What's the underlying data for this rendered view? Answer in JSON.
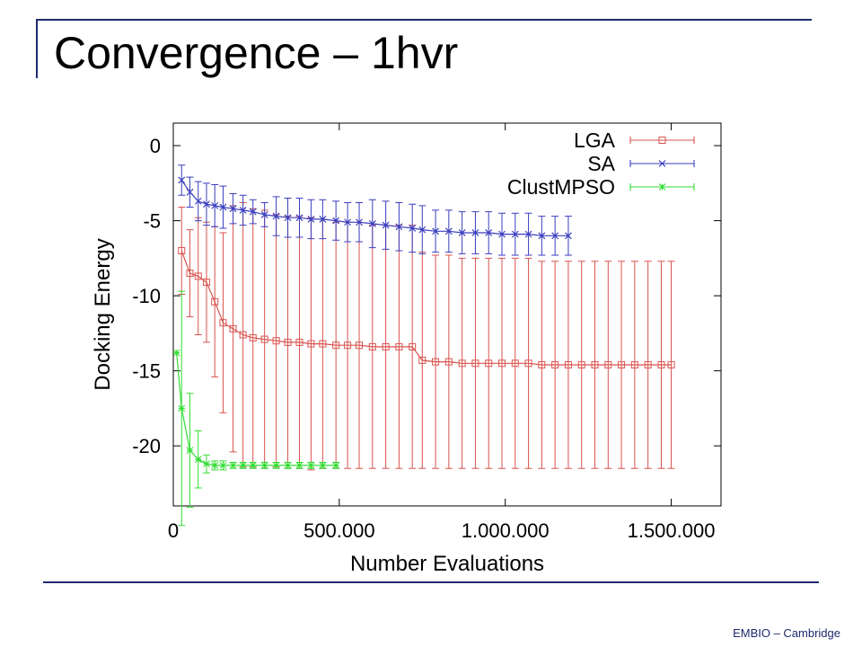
{
  "slide": {
    "title": "Convergence – 1hvr",
    "footer": "EMBIO – Cambridge"
  },
  "chart_data": {
    "type": "line",
    "xlabel": "Number Evaluations",
    "ylabel": "Docking Energy",
    "xlim": [
      0,
      1650000
    ],
    "ylim": [
      -24,
      1.5
    ],
    "xticks": [
      0,
      500000,
      1000000,
      1500000
    ],
    "xtick_labels": [
      "0",
      "500.000",
      "1.000.000",
      "1.500.000"
    ],
    "yticks": [
      0,
      -5,
      -10,
      -15,
      -20
    ],
    "ytick_labels": [
      "0",
      "-5",
      "-10",
      "-15",
      "-20"
    ],
    "legend_position": "top-right",
    "grid": false,
    "series": [
      {
        "name": "LGA",
        "color": "#d9534f",
        "marker": "square",
        "points": [
          [
            25000,
            -7.0,
            2.9
          ],
          [
            50000,
            -8.5,
            2.9
          ],
          [
            75000,
            -8.7,
            3.9
          ],
          [
            100000,
            -9.1,
            4.0
          ],
          [
            125000,
            -10.4,
            5.0
          ],
          [
            150000,
            -11.8,
            6.0
          ],
          [
            180000,
            -12.2,
            8.2
          ],
          [
            210000,
            -12.6,
            8.8
          ],
          [
            240000,
            -12.8,
            8.6
          ],
          [
            275000,
            -12.9,
            8.6
          ],
          [
            310000,
            -13.0,
            8.4
          ],
          [
            345000,
            -13.1,
            8.4
          ],
          [
            380000,
            -13.1,
            8.4
          ],
          [
            415000,
            -13.2,
            8.4
          ],
          [
            450000,
            -13.2,
            8.3
          ],
          [
            490000,
            -13.3,
            8.2
          ],
          [
            525000,
            -13.3,
            8.2
          ],
          [
            560000,
            -13.3,
            8.2
          ],
          [
            600000,
            -13.4,
            8.1
          ],
          [
            640000,
            -13.4,
            8.1
          ],
          [
            680000,
            -13.4,
            8.1
          ],
          [
            720000,
            -13.4,
            8.1
          ],
          [
            750000,
            -14.3,
            7.2
          ],
          [
            790000,
            -14.4,
            7.1
          ],
          [
            830000,
            -14.4,
            7.1
          ],
          [
            870000,
            -14.5,
            7.0
          ],
          [
            910000,
            -14.5,
            7.0
          ],
          [
            950000,
            -14.5,
            7.0
          ],
          [
            990000,
            -14.5,
            7.0
          ],
          [
            1030000,
            -14.5,
            7.0
          ],
          [
            1070000,
            -14.5,
            7.0
          ],
          [
            1110000,
            -14.6,
            6.9
          ],
          [
            1150000,
            -14.6,
            6.9
          ],
          [
            1190000,
            -14.6,
            6.9
          ],
          [
            1230000,
            -14.6,
            6.9
          ],
          [
            1270000,
            -14.6,
            6.9
          ],
          [
            1310000,
            -14.6,
            6.9
          ],
          [
            1350000,
            -14.6,
            6.9
          ],
          [
            1390000,
            -14.6,
            6.9
          ],
          [
            1430000,
            -14.6,
            6.9
          ],
          [
            1470000,
            -14.6,
            6.9
          ],
          [
            1500000,
            -14.6,
            6.9
          ]
        ]
      },
      {
        "name": "SA",
        "color": "#3a3fbf",
        "marker": "cross",
        "points": [
          [
            25000,
            -2.3,
            1.0
          ],
          [
            50000,
            -3.1,
            1.0
          ],
          [
            75000,
            -3.7,
            1.3
          ],
          [
            100000,
            -3.9,
            1.4
          ],
          [
            125000,
            -4.0,
            1.4
          ],
          [
            150000,
            -4.1,
            1.4
          ],
          [
            180000,
            -4.2,
            1.0
          ],
          [
            210000,
            -4.3,
            1.0
          ],
          [
            240000,
            -4.4,
            0.8
          ],
          [
            275000,
            -4.6,
            0.8
          ],
          [
            310000,
            -4.7,
            1.3
          ],
          [
            345000,
            -4.8,
            1.3
          ],
          [
            380000,
            -4.8,
            1.3
          ],
          [
            415000,
            -4.9,
            1.3
          ],
          [
            450000,
            -4.9,
            1.3
          ],
          [
            490000,
            -5.0,
            1.3
          ],
          [
            525000,
            -5.1,
            1.3
          ],
          [
            560000,
            -5.1,
            1.3
          ],
          [
            600000,
            -5.2,
            1.6
          ],
          [
            640000,
            -5.3,
            1.6
          ],
          [
            680000,
            -5.4,
            1.6
          ],
          [
            720000,
            -5.5,
            1.6
          ],
          [
            750000,
            -5.6,
            1.6
          ],
          [
            790000,
            -5.7,
            1.4
          ],
          [
            830000,
            -5.7,
            1.4
          ],
          [
            870000,
            -5.8,
            1.4
          ],
          [
            910000,
            -5.8,
            1.4
          ],
          [
            950000,
            -5.8,
            1.4
          ],
          [
            990000,
            -5.9,
            1.4
          ],
          [
            1030000,
            -5.9,
            1.4
          ],
          [
            1070000,
            -5.9,
            1.4
          ],
          [
            1110000,
            -6.0,
            1.3
          ],
          [
            1150000,
            -6.0,
            1.3
          ],
          [
            1190000,
            -6.0,
            1.3
          ]
        ]
      },
      {
        "name": "ClustMPSO",
        "color": "#33dd33",
        "marker": "star",
        "points": [
          [
            10000,
            -13.8,
            0
          ],
          [
            25000,
            -17.5,
            7.8
          ],
          [
            50000,
            -20.3,
            3.8
          ],
          [
            75000,
            -20.9,
            1.9
          ],
          [
            100000,
            -21.2,
            0.6
          ],
          [
            125000,
            -21.3,
            0.3
          ],
          [
            150000,
            -21.3,
            0.3
          ],
          [
            180000,
            -21.3,
            0.2
          ],
          [
            210000,
            -21.3,
            0.2
          ],
          [
            240000,
            -21.3,
            0.2
          ],
          [
            275000,
            -21.3,
            0.2
          ],
          [
            310000,
            -21.3,
            0.2
          ],
          [
            345000,
            -21.3,
            0.2
          ],
          [
            380000,
            -21.3,
            0.2
          ],
          [
            415000,
            -21.3,
            0.2
          ],
          [
            450000,
            -21.3,
            0.2
          ],
          [
            490000,
            -21.3,
            0.2
          ]
        ]
      }
    ]
  }
}
